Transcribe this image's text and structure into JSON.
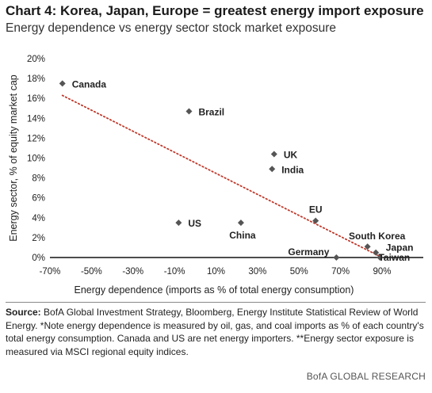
{
  "title": "Chart 4: Korea, Japan, Europe = greatest energy import exposure",
  "subtitle": "Energy dependence vs energy sector stock market exposure",
  "source_label": "Source:",
  "source_text": "BofA Global Investment Strategy, Bloomberg, Energy Institute Statistical Review of World Energy. *Note energy dependence is measured by oil, gas, and coal imports as % of each country's total energy consumption. Canada and US are net energy importers. **Energy sector exposure is measured via MSCI regional equity indices.",
  "credit": "BofA GLOBAL RESEARCH",
  "chart_data": {
    "type": "scatter",
    "xlabel": "Energy dependence (imports as % of total energy consumption)",
    "ylabel": "Energy sector, % of equity market cap",
    "xlim": [
      -70,
      90
    ],
    "ylim": [
      0,
      20
    ],
    "x_ticks": [
      "-70%",
      "-50%",
      "-30%",
      "-10%",
      "10%",
      "30%",
      "50%",
      "70%",
      "90%"
    ],
    "y_ticks": [
      "0%",
      "2%",
      "4%",
      "6%",
      "8%",
      "10%",
      "12%",
      "14%",
      "16%",
      "18%",
      "20%"
    ],
    "points": [
      {
        "label": "Canada",
        "x": -64,
        "y": 17.5
      },
      {
        "label": "Brazil",
        "x": -3,
        "y": 14.7
      },
      {
        "label": "UK",
        "x": 38,
        "y": 10.4
      },
      {
        "label": "India",
        "x": 37,
        "y": 8.9
      },
      {
        "label": "EU",
        "x": 58,
        "y": 3.7
      },
      {
        "label": "US",
        "x": -8,
        "y": 3.5
      },
      {
        "label": "China",
        "x": 22,
        "y": 3.5
      },
      {
        "label": "South Korea",
        "x": 83,
        "y": 1.1
      },
      {
        "label": "Japan",
        "x": 87,
        "y": 0.5
      },
      {
        "label": "Germany",
        "x": 68,
        "y": 0.0
      },
      {
        "label": "Taiwan",
        "x": 89,
        "y": 0.0
      }
    ],
    "trendline": {
      "style": "dotted",
      "color": "#c0392b",
      "x": [
        -64,
        89
      ],
      "y": [
        16.3,
        0.1
      ]
    },
    "marker_color": "#555555",
    "grid": false
  }
}
